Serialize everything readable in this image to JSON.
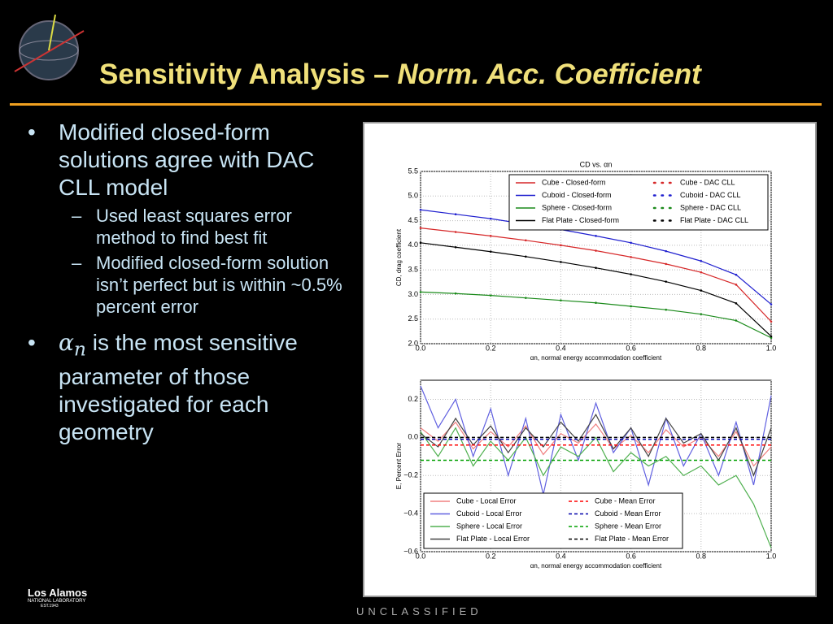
{
  "header": {
    "title": "Sensitivity Analysis – ",
    "title_italic": "Norm. Acc. Coefficient"
  },
  "bullets": [
    {
      "text": "Modified closed-form solutions agree with DAC CLL model",
      "sub": [
        "Used least squares error method to find best fit",
        "Modified closed-form solution isn’t perfect but is within ~0.5% percent error"
      ]
    },
    {
      "symbol": "α",
      "symbol_sub": "n",
      "text": " is the most sensitive parameter of those investigated for each geometry",
      "sub": []
    }
  ],
  "footer": "UNCLASSIFIED",
  "logo": {
    "name": "Los Alamos",
    "lab": "NATIONAL LABORATORY",
    "est": "EST.1943"
  },
  "chart_data": [
    {
      "type": "line",
      "title": "CD vs. αn",
      "xlabel": "αn, normal energy accommodation coefficient",
      "ylabel": "CD, drag coefficient",
      "x": [
        0,
        0.1,
        0.2,
        0.3,
        0.4,
        0.5,
        0.6,
        0.7,
        0.8,
        0.9,
        1.0
      ],
      "xlim": [
        0,
        1
      ],
      "xticks": [
        {
          "value": 0,
          "label": "0.0"
        },
        0.2,
        0.4,
        0.6,
        0.8,
        {
          "value": 1,
          "label": "1.0"
        }
      ],
      "ylim": [
        2,
        5.5
      ],
      "yticks": [
        {
          "value": 2,
          "label": "2.0"
        },
        2.5,
        {
          "value": 3,
          "label": "3.0"
        },
        3.5,
        {
          "value": 4,
          "label": "4.0"
        },
        4.5,
        {
          "value": 5,
          "label": "5.0"
        },
        5.5
      ],
      "grid": true,
      "legend": "upper right",
      "series": [
        {
          "name": "Cube - Closed-form",
          "color": "#d62728",
          "style": "solid",
          "values": [
            4.35,
            4.27,
            4.19,
            4.1,
            4.0,
            3.89,
            3.76,
            3.62,
            3.45,
            3.2,
            2.45
          ]
        },
        {
          "name": "Cuboid - Closed-form",
          "color": "#1f1fcf",
          "style": "solid",
          "values": [
            4.72,
            4.63,
            4.54,
            4.43,
            4.32,
            4.19,
            4.05,
            3.88,
            3.68,
            3.4,
            2.8
          ]
        },
        {
          "name": "Sphere - Closed-form",
          "color": "#1a8a1a",
          "style": "solid",
          "values": [
            3.05,
            3.02,
            2.98,
            2.93,
            2.88,
            2.83,
            2.76,
            2.69,
            2.6,
            2.47,
            2.12
          ]
        },
        {
          "name": "Flat Plate - Closed-form",
          "color": "#000000",
          "style": "solid",
          "values": [
            4.05,
            3.96,
            3.87,
            3.77,
            3.66,
            3.54,
            3.41,
            3.26,
            3.08,
            2.82,
            2.15
          ]
        },
        {
          "name": "Cube - DAC CLL",
          "color": "#d62728",
          "style": "dotted",
          "values": [
            4.35,
            4.27,
            4.19,
            4.1,
            4.0,
            3.89,
            3.76,
            3.62,
            3.45,
            3.2,
            2.45
          ]
        },
        {
          "name": "Cuboid - DAC CLL",
          "color": "#1f1fcf",
          "style": "dotted",
          "values": [
            4.72,
            4.63,
            4.54,
            4.43,
            4.32,
            4.19,
            4.05,
            3.88,
            3.68,
            3.4,
            2.8
          ]
        },
        {
          "name": "Sphere - DAC CLL",
          "color": "#1a8a1a",
          "style": "dotted",
          "values": [
            3.05,
            3.02,
            2.98,
            2.93,
            2.88,
            2.83,
            2.76,
            2.69,
            2.6,
            2.47,
            2.12
          ]
        },
        {
          "name": "Flat Plate - DAC CLL",
          "color": "#000000",
          "style": "dotted",
          "values": [
            4.05,
            3.96,
            3.87,
            3.77,
            3.66,
            3.54,
            3.41,
            3.26,
            3.08,
            2.82,
            2.15
          ]
        }
      ]
    },
    {
      "type": "line",
      "xlabel": "αn, normal energy accommodation coefficient",
      "ylabel": "E, Percent Error",
      "x": [
        0,
        0.05,
        0.1,
        0.15,
        0.2,
        0.25,
        0.3,
        0.35,
        0.4,
        0.45,
        0.5,
        0.55,
        0.6,
        0.65,
        0.7,
        0.75,
        0.8,
        0.85,
        0.9,
        0.95,
        1.0
      ],
      "xlim": [
        0,
        1
      ],
      "xticks": [
        {
          "value": 0,
          "label": "0.0"
        },
        0.2,
        0.4,
        0.6,
        0.8,
        {
          "value": 1,
          "label": "1.0"
        }
      ],
      "ylim": [
        -0.6,
        0.3
      ],
      "yticks": [
        {
          "value": -0.6,
          "label": "−0.6"
        },
        {
          "value": -0.4,
          "label": "−0.4"
        },
        {
          "value": -0.2,
          "label": "−0.2"
        },
        {
          "value": 0,
          "label": "0.0"
        },
        0.2
      ],
      "grid": true,
      "legend": "lower left",
      "series": [
        {
          "name": "Cube - Local Error",
          "color": "#f08080",
          "style": "solid",
          "values": [
            0.05,
            -0.02,
            0.08,
            -0.06,
            0.03,
            -0.05,
            0.06,
            -0.09,
            0.02,
            -0.03,
            0.07,
            -0.06,
            0.01,
            -0.08,
            0.04,
            -0.05,
            0.0,
            -0.1,
            0.03,
            -0.15,
            -0.05
          ]
        },
        {
          "name": "Cuboid - Local Error",
          "color": "#6060e0",
          "style": "solid",
          "values": [
            0.27,
            0.05,
            0.2,
            -0.1,
            0.15,
            -0.2,
            0.1,
            -0.3,
            0.12,
            -0.12,
            0.18,
            -0.08,
            0.05,
            -0.25,
            0.1,
            -0.15,
            0.02,
            -0.2,
            0.08,
            -0.25,
            0.22
          ]
        },
        {
          "name": "Sphere - Local Error",
          "color": "#50b050",
          "style": "solid",
          "values": [
            0.03,
            -0.1,
            0.05,
            -0.15,
            -0.02,
            -0.12,
            0.0,
            -0.2,
            -0.05,
            -0.1,
            0.0,
            -0.18,
            -0.08,
            -0.15,
            -0.1,
            -0.2,
            -0.15,
            -0.25,
            -0.2,
            -0.35,
            -0.58
          ]
        },
        {
          "name": "Flat Plate - Local Error",
          "color": "#444444",
          "style": "solid",
          "values": [
            0.02,
            -0.05,
            0.1,
            -0.04,
            0.06,
            -0.08,
            0.05,
            -0.05,
            0.08,
            -0.02,
            0.12,
            -0.06,
            0.05,
            -0.1,
            0.1,
            -0.03,
            0.02,
            -0.12,
            0.05,
            -0.2,
            0.05
          ]
        },
        {
          "name": "Cube - Mean Error",
          "color": "#ff0000",
          "style": "dashed",
          "values": [
            -0.04,
            -0.04,
            -0.04,
            -0.04,
            -0.04,
            -0.04,
            -0.04,
            -0.04,
            -0.04,
            -0.04,
            -0.04,
            -0.04,
            -0.04,
            -0.04,
            -0.04,
            -0.04,
            -0.04,
            -0.04,
            -0.04,
            -0.04,
            -0.04
          ]
        },
        {
          "name": "Cuboid - Mean Error",
          "color": "#0000aa",
          "style": "dashed",
          "values": [
            -0.01,
            -0.01,
            -0.01,
            -0.01,
            -0.01,
            -0.01,
            -0.01,
            -0.01,
            -0.01,
            -0.01,
            -0.01,
            -0.01,
            -0.01,
            -0.01,
            -0.01,
            -0.01,
            -0.01,
            -0.01,
            -0.01,
            -0.01,
            -0.01
          ]
        },
        {
          "name": "Sphere - Mean Error",
          "color": "#00a000",
          "style": "dashed",
          "values": [
            -0.12,
            -0.12,
            -0.12,
            -0.12,
            -0.12,
            -0.12,
            -0.12,
            -0.12,
            -0.12,
            -0.12,
            -0.12,
            -0.12,
            -0.12,
            -0.12,
            -0.12,
            -0.12,
            -0.12,
            -0.12,
            -0.12,
            -0.12,
            -0.12
          ]
        },
        {
          "name": "Flat Plate - Mean Error",
          "color": "#000000",
          "style": "dashed",
          "values": [
            0,
            0,
            0,
            0,
            0,
            0,
            0,
            0,
            0,
            0,
            0,
            0,
            0,
            0,
            0,
            0,
            0,
            0,
            0,
            0,
            0
          ]
        }
      ]
    }
  ]
}
